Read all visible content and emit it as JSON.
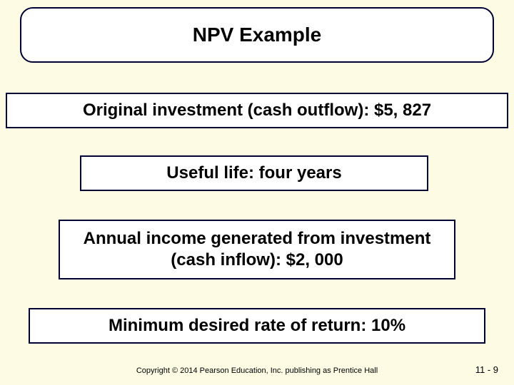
{
  "slide": {
    "background_color": "#fdfbe3",
    "box_background": "#ffffff",
    "box_border_color": "#000033",
    "title": {
      "text": "NPV Example",
      "font_size": 28,
      "font_weight": "bold",
      "border_radius": 18
    },
    "lines": [
      {
        "text": "Original investment (cash outflow): $5, 827"
      },
      {
        "text": "Useful life: four years"
      },
      {
        "text": "Annual income generated from investment (cash inflow): $2, 000"
      },
      {
        "text": "Minimum desired rate of return: 10%"
      }
    ],
    "line_font_size": 24,
    "line_font_weight": "bold"
  },
  "footer": {
    "copyright": "Copyright © 2014 Pearson Education, Inc. publishing as Prentice Hall",
    "page": "11 - 9",
    "copyright_font_size": 11,
    "page_font_size": 13
  }
}
